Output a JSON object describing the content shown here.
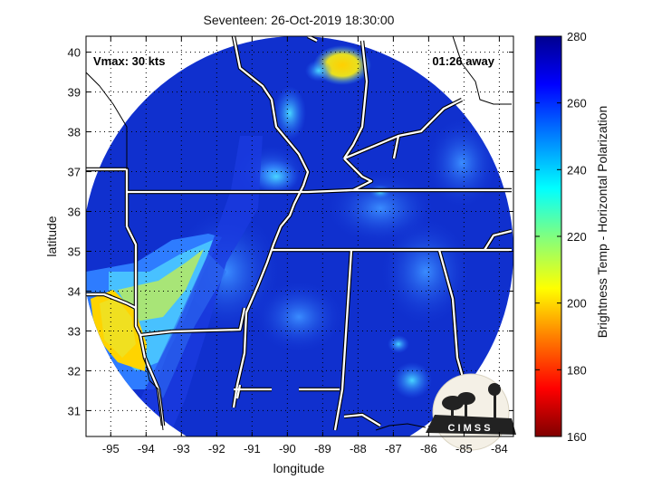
{
  "title": "Seventeen: 26-Oct-2019 18:30:00",
  "vmax_label": "Vmax: 30 kts",
  "time_away_label": "01:26 away",
  "xlabel": "longitude",
  "ylabel": "latitude",
  "colorbar_label": "Brightness Temp - Horizontal Polarization",
  "logo_text": "C I M S S",
  "map": {
    "lon_ticks": [
      -95,
      -94,
      -93,
      -92,
      -91,
      -90,
      -89,
      -88,
      -87,
      -86,
      -85,
      -84
    ],
    "lat_ticks": [
      31,
      32,
      33,
      34,
      35,
      36,
      37,
      38,
      39,
      40
    ],
    "lon_range": [
      -95.7,
      -83.6
    ],
    "lat_range": [
      30.35,
      40.4
    ],
    "grid": true,
    "swath_center": [
      -89.6,
      35.2
    ]
  },
  "colorbar": {
    "ticks": [
      160,
      180,
      200,
      220,
      240,
      260,
      280
    ],
    "range": [
      160,
      280
    ],
    "colormap": [
      "#7f0000",
      "#ff0000",
      "#ff8000",
      "#ffff00",
      "#80ff80",
      "#00ffff",
      "#0080ff",
      "#0000ff",
      "#00008f"
    ]
  },
  "colors": {
    "background_scan": "#1233d6",
    "border": "#ffffff",
    "axis": "#000000"
  }
}
